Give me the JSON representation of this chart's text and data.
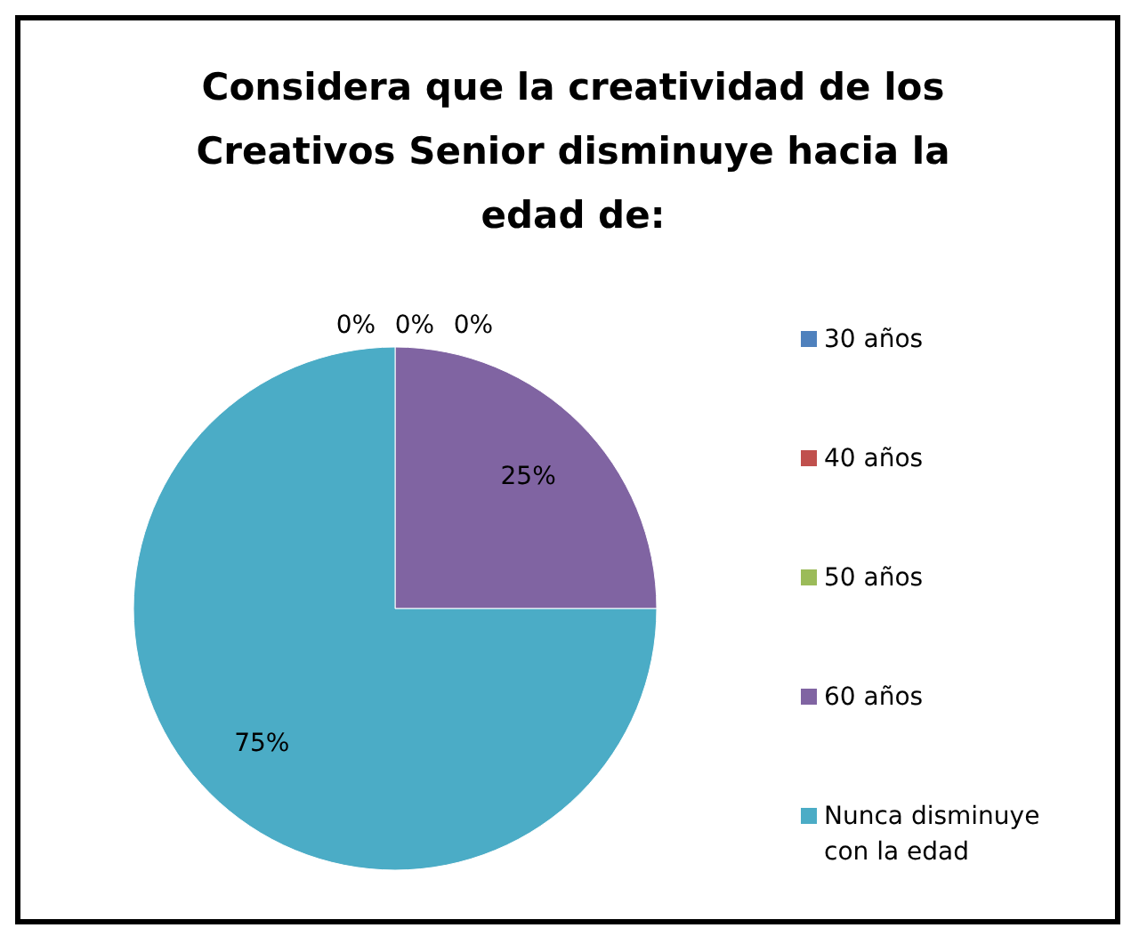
{
  "chart_data": {
    "type": "pie",
    "title": "Considera que la creatividad de los Creativos Senior disminuye hacia la edad de:",
    "categories": [
      "30 años",
      "40 años",
      "50 años",
      "60 años",
      "Nunca disminuye con la edad"
    ],
    "values": [
      0,
      0,
      0,
      25,
      75
    ],
    "colors": [
      "#4f81bd",
      "#c0504d",
      "#9bbb59",
      "#8064a2",
      "#4bacc6"
    ],
    "value_labels": [
      "0%",
      "0%",
      "0%",
      "25%",
      "75%"
    ],
    "legend": "right"
  }
}
